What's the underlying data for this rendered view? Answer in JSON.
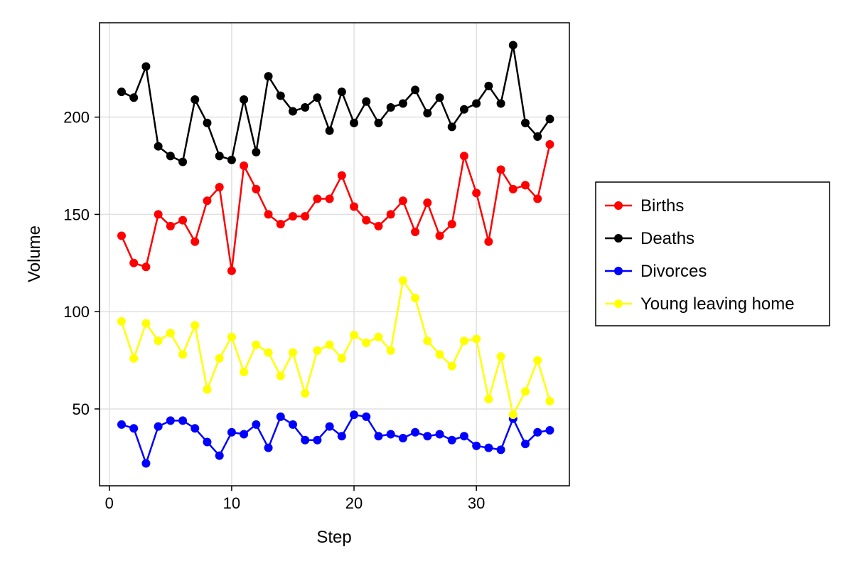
{
  "chart_data": {
    "type": "line",
    "title": "",
    "xlabel": "Step",
    "ylabel": "Volume",
    "xlim": [
      -0.8,
      37.6
    ],
    "ylim": [
      10.5,
      248.5
    ],
    "xticks": [
      0,
      10,
      20,
      30
    ],
    "yticks": [
      50,
      100,
      150,
      200
    ],
    "grid": true,
    "legend_position": "right",
    "x": [
      1,
      2,
      3,
      4,
      5,
      6,
      7,
      8,
      9,
      10,
      11,
      12,
      13,
      14,
      15,
      16,
      17,
      18,
      19,
      20,
      21,
      22,
      23,
      24,
      25,
      26,
      27,
      28,
      29,
      30,
      31,
      32,
      33,
      34,
      35,
      36
    ],
    "series": [
      {
        "name": "Births",
        "color": "#ff0000",
        "values": [
          139,
          125,
          123,
          150,
          144,
          147,
          136,
          157,
          164,
          121,
          175,
          163,
          150,
          145,
          149,
          149,
          158,
          158,
          170,
          154,
          147,
          144,
          150,
          157,
          141,
          156,
          139,
          145,
          180,
          161,
          136,
          173,
          163,
          165,
          158,
          186
        ]
      },
      {
        "name": "Deaths",
        "color": "#000000",
        "values": [
          213,
          210,
          226,
          185,
          180,
          177,
          209,
          197,
          180,
          178,
          209,
          182,
          221,
          211,
          203,
          205,
          210,
          193,
          213,
          197,
          208,
          197,
          205,
          207,
          214,
          202,
          210,
          195,
          204,
          207,
          216,
          207,
          237,
          197,
          190,
          199
        ]
      },
      {
        "name": "Divorces",
        "color": "#0000ff",
        "values": [
          42,
          40,
          22,
          41,
          44,
          44,
          40,
          33,
          26,
          38,
          37,
          42,
          30,
          46,
          42,
          34,
          34,
          41,
          36,
          47,
          46,
          36,
          37,
          35,
          38,
          36,
          37,
          34,
          36,
          31,
          30,
          29,
          45,
          32,
          38,
          39
        ]
      },
      {
        "name": "Young leaving home",
        "color": "#ffff00",
        "values": [
          95,
          76,
          94,
          85,
          89,
          78,
          93,
          60,
          76,
          87,
          69,
          83,
          79,
          67,
          79,
          58,
          80,
          83,
          76,
          88,
          84,
          87,
          80,
          116,
          107,
          85,
          78,
          72,
          85,
          86,
          55,
          77,
          47,
          59,
          75,
          54
        ]
      }
    ]
  }
}
